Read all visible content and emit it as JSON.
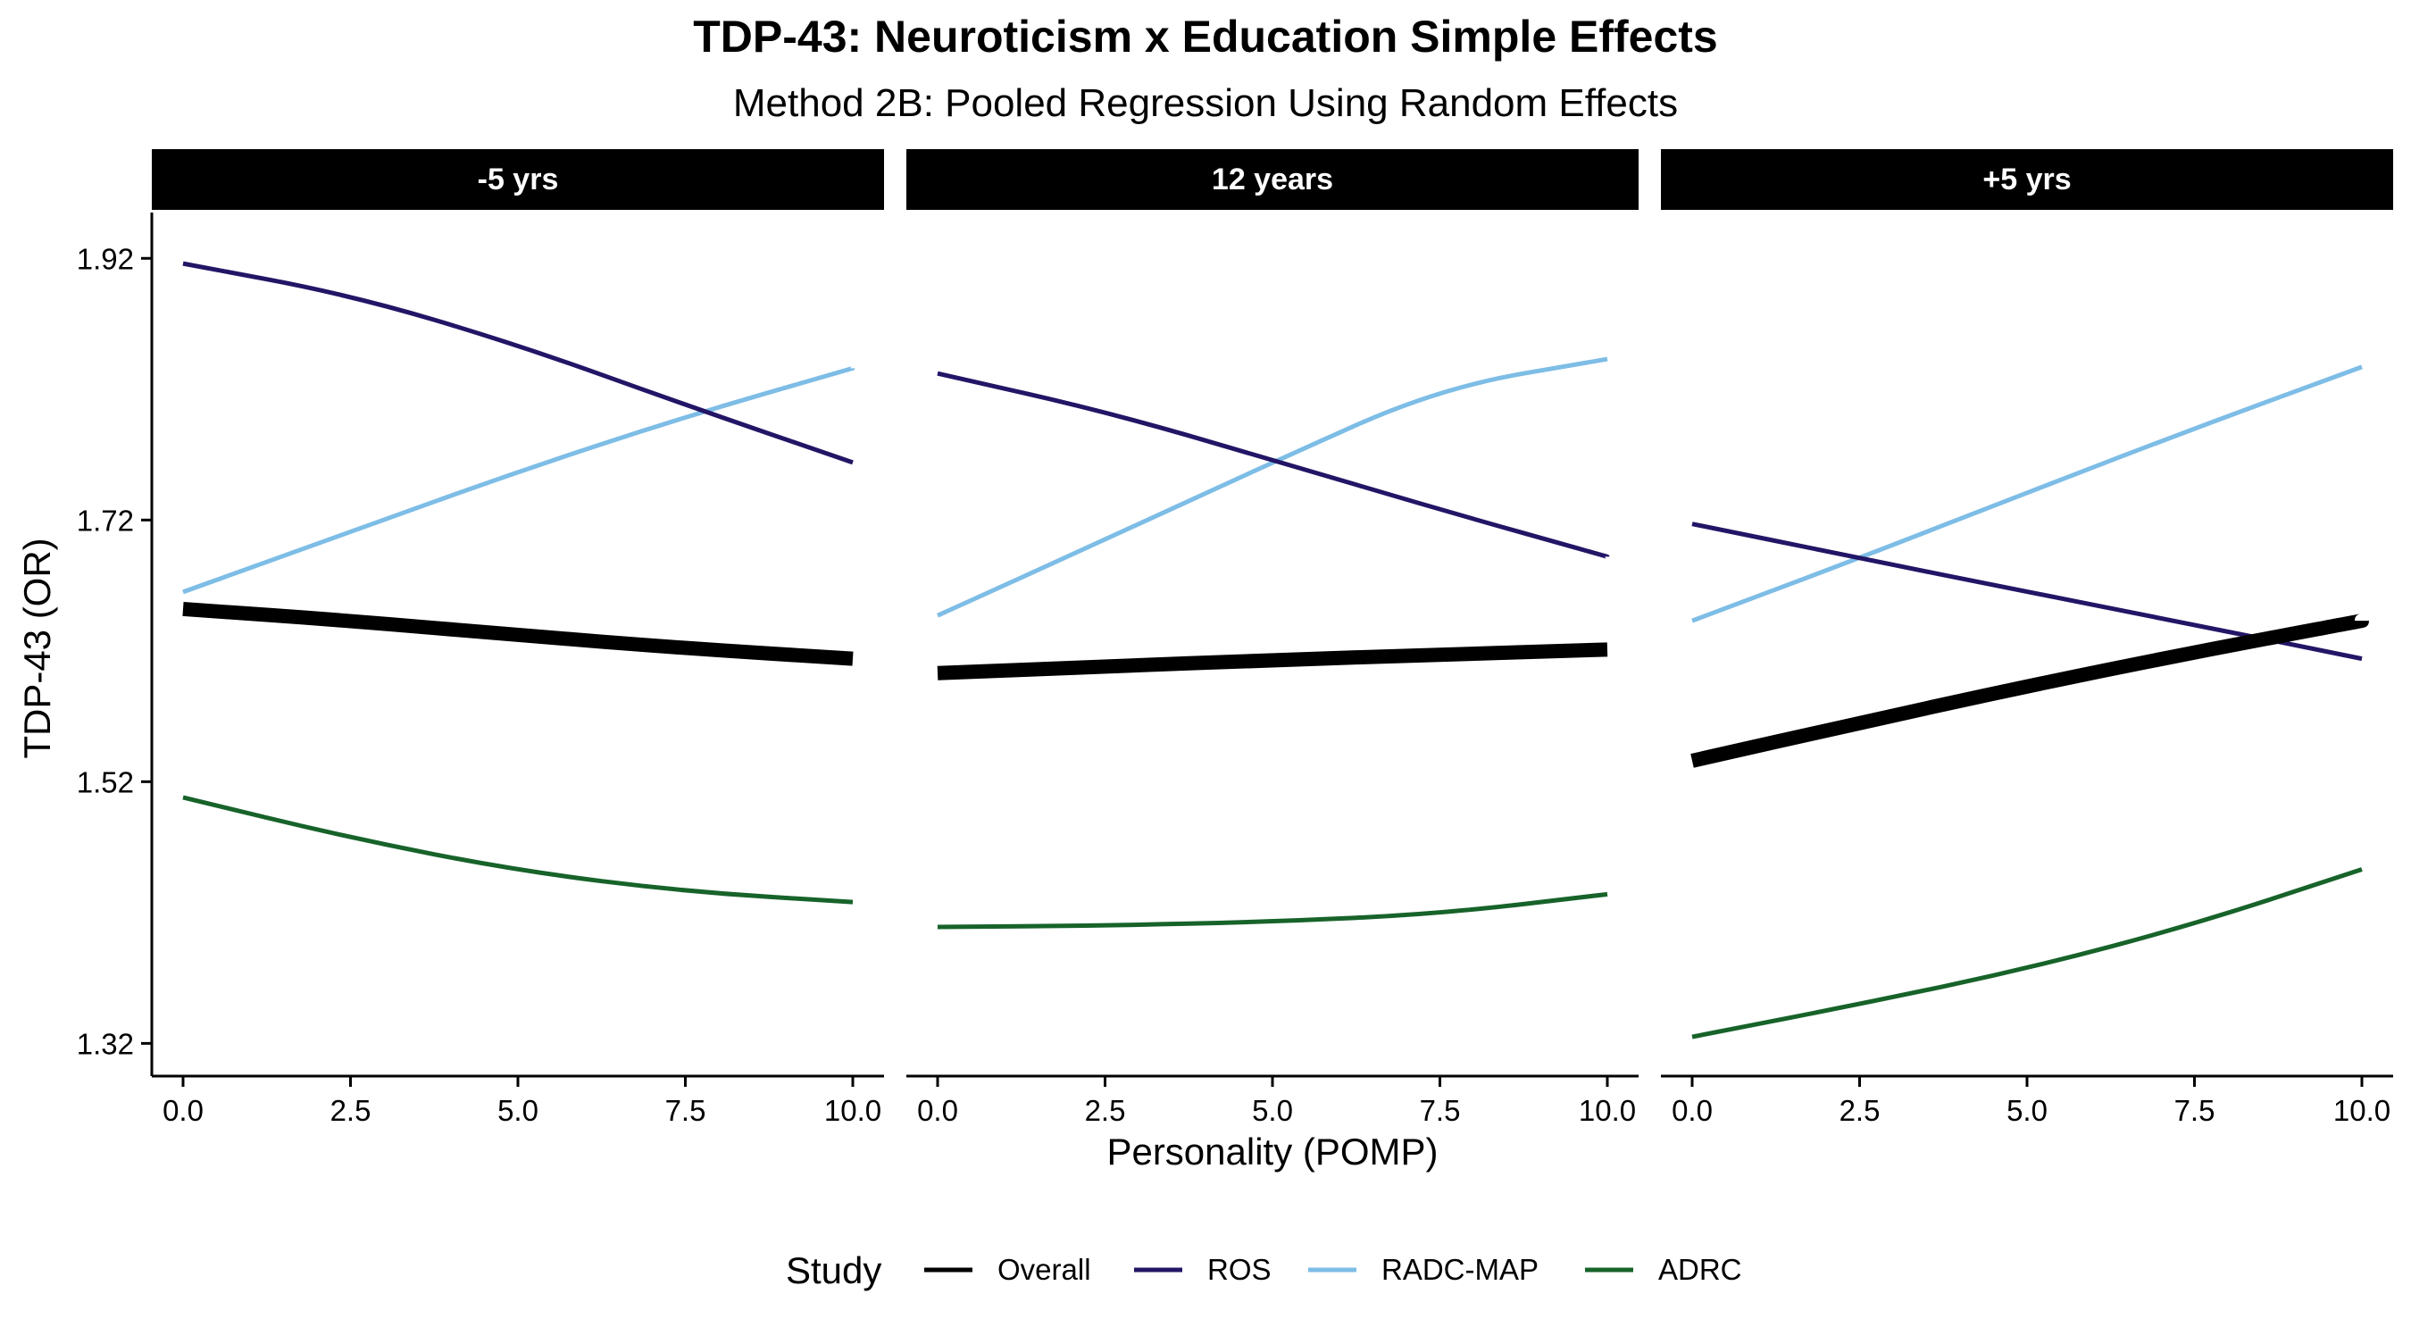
{
  "chart_data": {
    "type": "line",
    "title": "TDP-43: Neuroticism x Education Simple Effects",
    "subtitle": "Method 2B: Pooled Regression Using Random Effects",
    "xlabel": "Personality (POMP)",
    "ylabel": "TDP-43 (OR)",
    "xlim": [
      0,
      10
    ],
    "ylim": [
      1.295,
      1.955
    ],
    "x_ticks": [
      "0.0",
      "2.5",
      "5.0",
      "7.5",
      "10.0"
    ],
    "y_ticks": [
      "1.32",
      "1.52",
      "1.72",
      "1.92"
    ],
    "grid": false,
    "legend": {
      "title": "Study",
      "position": "bottom",
      "entries": [
        "Overall",
        "ROS",
        "RADC-MAP",
        "ADRC"
      ]
    },
    "colors": {
      "Overall": "#000000",
      "ROS": "#231566",
      "RADC-MAP": "#7dbde6",
      "ADRC": "#17632a"
    },
    "x": [
      0,
      2.5,
      5,
      7.5,
      10
    ],
    "panels": [
      {
        "label": "-5 yrs",
        "series": [
          {
            "name": "Overall",
            "values": [
              1.652,
              1.643,
              1.632,
              1.622,
              1.614
            ]
          },
          {
            "name": "ROS",
            "values": [
              1.916,
              1.892,
              1.854,
              1.808,
              1.764
            ]
          },
          {
            "name": "RADC-MAP",
            "values": [
              1.665,
              1.711,
              1.757,
              1.799,
              1.836
            ]
          },
          {
            "name": "ADRC",
            "values": [
              1.508,
              1.477,
              1.452,
              1.436,
              1.428
            ]
          }
        ]
      },
      {
        "label": "12 years",
        "series": [
          {
            "name": "Overall",
            "values": [
              1.603,
              1.608,
              1.613,
              1.617,
              1.621
            ]
          },
          {
            "name": "ROS",
            "values": [
              1.832,
              1.803,
              1.766,
              1.728,
              1.692
            ]
          },
          {
            "name": "RADC-MAP",
            "values": [
              1.647,
              1.705,
              1.764,
              1.821,
              1.843
            ]
          },
          {
            "name": "ADRC",
            "values": [
              1.409,
              1.41,
              1.413,
              1.419,
              1.434
            ]
          }
        ]
      },
      {
        "label": "+5 yrs",
        "series": [
          {
            "name": "Overall",
            "values": [
              1.536,
              1.565,
              1.593,
              1.619,
              1.643
            ]
          },
          {
            "name": "ROS",
            "values": [
              1.717,
              1.691,
              1.665,
              1.64,
              1.614
            ]
          },
          {
            "name": "RADC-MAP",
            "values": [
              1.643,
              1.691,
              1.741,
              1.79,
              1.837
            ]
          },
          {
            "name": "ADRC",
            "values": [
              1.325,
              1.35,
              1.377,
              1.411,
              1.453
            ]
          }
        ]
      }
    ]
  }
}
